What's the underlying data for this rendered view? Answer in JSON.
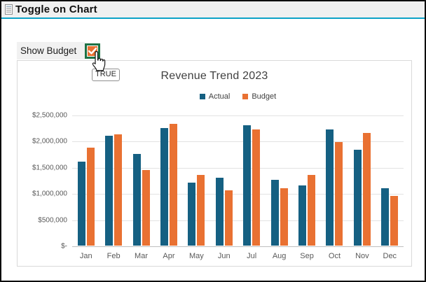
{
  "window": {
    "title": "Toggle on Chart"
  },
  "toggle": {
    "label": "Show Budget",
    "checked": true,
    "state_tooltip": "TRUE"
  },
  "colors": {
    "accent_line": "#0DA2C7",
    "header_bg": "#F0F0F0",
    "checkbox_border": "#1E7245",
    "checkbox_fill": "#E97132",
    "actual_bar": "#156082",
    "budget_bar": "#E97132",
    "gridline": "#E2E2E2",
    "axis_line": "#BFBFBF",
    "tick_text": "#595959",
    "title_text": "#404040"
  },
  "chart_data": {
    "type": "bar",
    "title": "Revenue Trend 2023",
    "categories": [
      "Jan",
      "Feb",
      "Mar",
      "Apr",
      "May",
      "Jun",
      "Jul",
      "Aug",
      "Sep",
      "Oct",
      "Nov",
      "Dec"
    ],
    "series": [
      {
        "name": "Actual",
        "color": "#156082",
        "values": [
          1600000,
          2100000,
          1750000,
          2250000,
          1200000,
          1300000,
          2300000,
          1250000,
          1150000,
          2225000,
          1825000,
          1100000
        ]
      },
      {
        "name": "Budget",
        "color": "#E97132",
        "values": [
          1875000,
          2125000,
          1450000,
          2325000,
          1350000,
          1050000,
          2225000,
          1100000,
          1350000,
          1975000,
          2150000,
          950000
        ]
      }
    ],
    "ylim": [
      0,
      2500000
    ],
    "yticks": [
      {
        "value": 0,
        "label": "$-"
      },
      {
        "value": 500000,
        "label": "$500,000"
      },
      {
        "value": 1000000,
        "label": "$1,000,000"
      },
      {
        "value": 1500000,
        "label": "$1,500,000"
      },
      {
        "value": 2000000,
        "label": "$2,000,000"
      },
      {
        "value": 2500000,
        "label": "$2,500,000"
      }
    ],
    "grid": true,
    "legend_position": "top"
  }
}
